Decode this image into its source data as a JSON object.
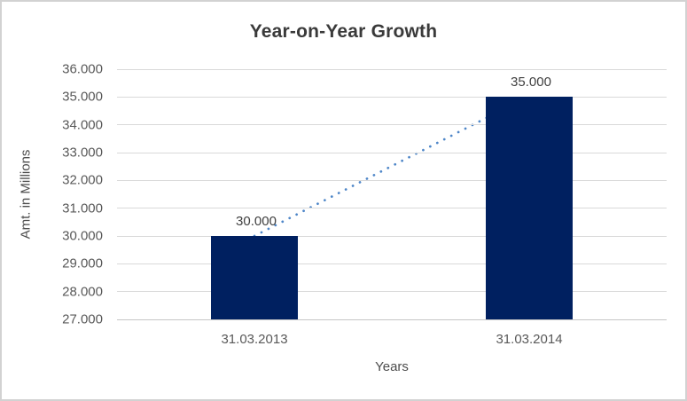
{
  "chart_data": {
    "type": "bar",
    "title": "Year-on-Year Growth",
    "xlabel": "Years",
    "ylabel": "Amt. in Millions",
    "categories": [
      "31.03.2013",
      "31.03.2014"
    ],
    "values": [
      30,
      35
    ],
    "value_labels": [
      "30.000",
      "35.000"
    ],
    "ylim": [
      27,
      36
    ],
    "grid": "horizontal",
    "legend": "none",
    "y_ticks": [
      {
        "value": 36,
        "label": "36.000"
      },
      {
        "value": 35,
        "label": "35.000"
      },
      {
        "value": 34,
        "label": "34.000"
      },
      {
        "value": 33,
        "label": "33.000"
      },
      {
        "value": 32,
        "label": "32.000"
      },
      {
        "value": 31,
        "label": "31.000"
      },
      {
        "value": 30,
        "label": "30.000"
      },
      {
        "value": 29,
        "label": "29.000"
      },
      {
        "value": 28,
        "label": "28.000"
      },
      {
        "value": 27,
        "label": "27.000"
      }
    ],
    "trendline": {
      "style": "dotted",
      "from_value": 30,
      "to_value": 35,
      "color": "#4e86c8"
    },
    "colors": {
      "bar": "#002060",
      "gridline": "#d9d9d9",
      "axis_line": "#c6c6c6",
      "title_text": "#3a3a3a",
      "tick_text": "#595959",
      "border": "#d2d2d2",
      "background": "#ffffff"
    }
  }
}
